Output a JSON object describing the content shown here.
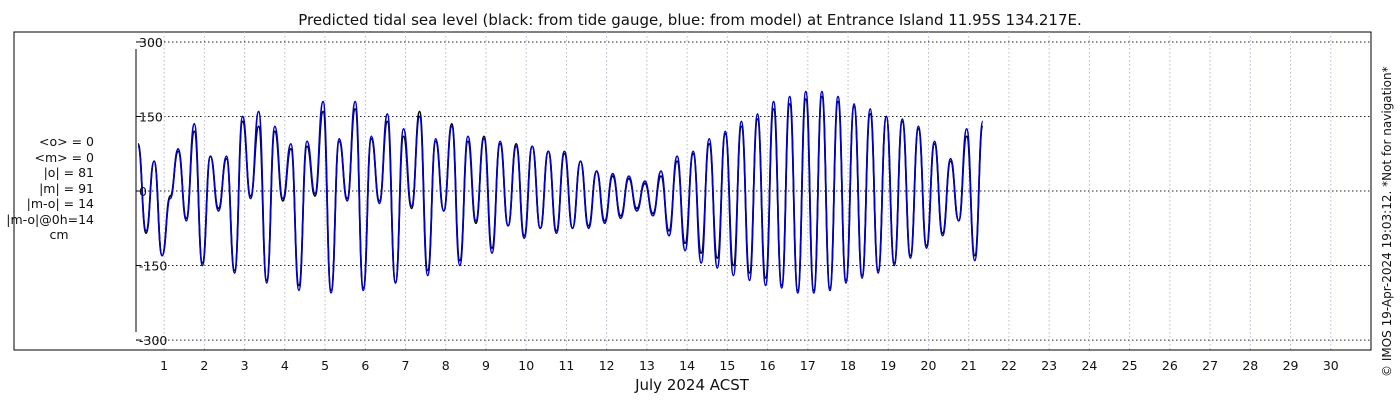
{
  "chart_data": {
    "type": "line",
    "title": "Predicted tidal sea level (black: from tide gauge, blue: from model) at Entrance Island 11.95S 134.217E.",
    "xlabel": "July 2024 ACST",
    "ylabel": "",
    "xlim": [
      0.3,
      31.0
    ],
    "ylim": [
      -320,
      320
    ],
    "yticks": [
      300,
      150,
      0,
      -150,
      -300
    ],
    "ytick_labels": [
      "300",
      "150",
      "0",
      "-150",
      "-300"
    ],
    "xticks": [
      1,
      2,
      3,
      4,
      5,
      6,
      7,
      8,
      9,
      10,
      11,
      12,
      13,
      14,
      15,
      16,
      17,
      18,
      19,
      20,
      21,
      22,
      23,
      24,
      25,
      26,
      27,
      28,
      29,
      30
    ],
    "xtick_labels": [
      "1",
      "2",
      "3",
      "4",
      "5",
      "6",
      "7",
      "8",
      "9",
      "10",
      "11",
      "12",
      "13",
      "14",
      "15",
      "16",
      "17",
      "18",
      "19",
      "20",
      "21",
      "22",
      "23",
      "24",
      "25",
      "26",
      "27",
      "28",
      "29",
      "30"
    ],
    "grid": true,
    "sample_step_days": 0.2,
    "series": [
      {
        "name": "tide gauge",
        "color": "#000000",
        "x_start": 0.35,
        "values": [
          95,
          -85,
          60,
          -130,
          -10,
          80,
          -55,
          120,
          -145,
          70,
          -35,
          65,
          -160,
          140,
          -10,
          130,
          -180,
          120,
          -20,
          85,
          -190,
          90,
          -10,
          160,
          -200,
          100,
          -15,
          165,
          -195,
          105,
          -20,
          140,
          -185,
          110,
          -35,
          160,
          -160,
          100,
          -40,
          135,
          -140,
          100,
          -65,
          110,
          -115,
          95,
          -70,
          95,
          -90,
          90,
          -75,
          80,
          -80,
          75,
          -75,
          60,
          -70,
          40,
          -60,
          30,
          -50,
          25,
          -35,
          15,
          -45,
          30,
          -80,
          60,
          -105,
          75,
          -125,
          95,
          -135,
          115,
          -150,
          130,
          -165,
          145,
          -175,
          165,
          -190,
          175,
          -200,
          185,
          -200,
          190,
          -195,
          180,
          -180,
          170,
          -170,
          155,
          -160,
          150,
          -145,
          140,
          -130,
          125,
          -110,
          95,
          -85,
          60,
          -60,
          110,
          -130,
          130
        ]
      },
      {
        "name": "model",
        "color": "#0000cc",
        "x_start": 0.35,
        "values": [
          90,
          -80,
          60,
          -130,
          -15,
          85,
          -60,
          135,
          -150,
          70,
          -40,
          70,
          -165,
          150,
          -15,
          160,
          -185,
          130,
          -15,
          95,
          -200,
          100,
          -5,
          180,
          -205,
          105,
          -20,
          180,
          -200,
          110,
          -25,
          155,
          -185,
          125,
          -30,
          150,
          -170,
          105,
          -40,
          130,
          -150,
          110,
          -60,
          105,
          -125,
          100,
          -70,
          90,
          -95,
          90,
          -75,
          80,
          -85,
          80,
          -75,
          60,
          -75,
          40,
          -65,
          35,
          -55,
          30,
          -40,
          20,
          -50,
          40,
          -90,
          70,
          -120,
          80,
          -145,
          105,
          -155,
          120,
          -170,
          140,
          -180,
          155,
          -190,
          180,
          -195,
          190,
          -205,
          200,
          -205,
          200,
          -200,
          190,
          -185,
          175,
          -175,
          165,
          -165,
          150,
          -150,
          145,
          -135,
          130,
          -115,
          100,
          -90,
          65,
          -60,
          125,
          -140,
          140
        ]
      }
    ],
    "annotations": [
      "<o> = 0",
      "<m> = 0",
      "|o| = 81",
      "|m| = 91",
      "|m-o| = 14",
      "|m-o|@0h=14",
      "cm"
    ],
    "side_note": "© IMOS 19-Apr-2024 19:03:12. *Not for navigation*"
  }
}
